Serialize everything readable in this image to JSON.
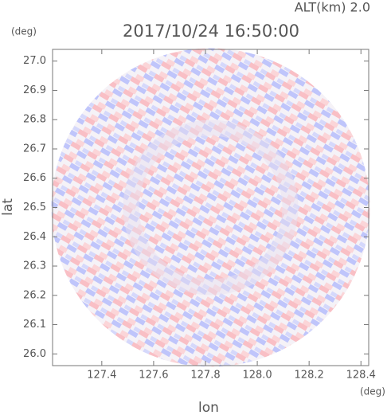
{
  "chart_data": {
    "type": "radar-ppi",
    "title": "2017/10/24 16:50:00",
    "altitude_label": "ALT(km)  2.0",
    "xlabel": "lon",
    "ylabel": "lat",
    "xunit": "(deg)",
    "yunit": "(deg)",
    "xlim": [
      127.21,
      128.43
    ],
    "ylim": [
      25.96,
      27.04
    ],
    "xticks": [
      127.4,
      127.6,
      127.8,
      {
        "value": 128,
        "label": "128.0"
      },
      128.2,
      128.4
    ],
    "yticks": [
      {
        "value": 26,
        "label": "26.0"
      },
      26.1,
      26.2,
      26.3,
      26.4,
      26.5,
      26.6,
      26.7,
      26.8,
      26.9,
      {
        "value": 27,
        "label": "27.0"
      }
    ]
  }
}
